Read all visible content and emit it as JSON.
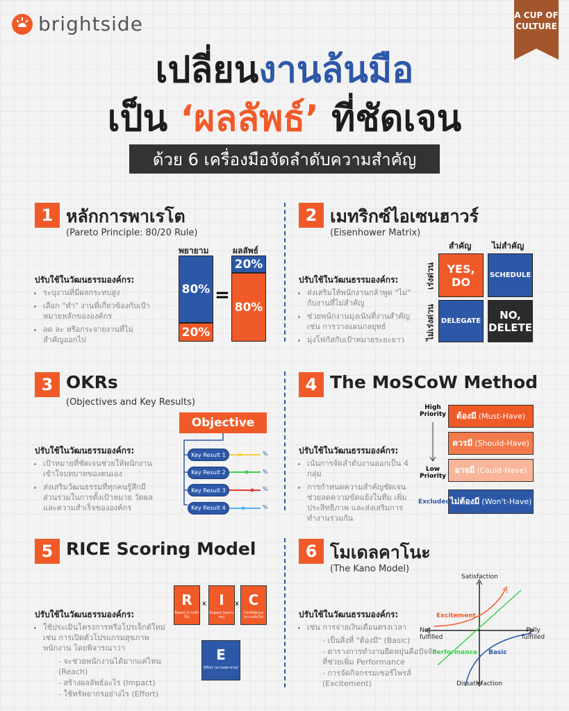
{
  "header": {
    "brand": "brightside",
    "badge": [
      "A CUP OF",
      "CULTURE"
    ],
    "title_line1": [
      "เปลี่ยน",
      "งานล้นมือ"
    ],
    "title_line2": [
      "เป็น",
      "‘ผลลัพธ์’",
      "ที่ชัดเจน"
    ],
    "subtitle": "ด้วย 6 เครื่องมือจัดลำดับความสำคัญ"
  },
  "apply_label": "ปรับใช้ในวัฒนธรรมองค์กร:",
  "sections": [
    {
      "number": "1",
      "title": "หลักการพาเรโต",
      "subtitle": "(Pareto Principle: 80/20 Rule)",
      "bullets": [
        "ระบุงานที่มีผลกระทบสูง",
        "เลือก \"ทำ\" งานที่เกี่ยวข้องกับเป้าหมายหลักขององค์กร",
        "ลด ละ หรือกระจายงานที่ไม่สำคัญออกไป"
      ]
    },
    {
      "number": "2",
      "title": "เมทริกซ์ไอเซนฮาวร์",
      "subtitle": "(Eisenhower Matrix)",
      "bullets": [
        "ส่งเสริมให้พนักงานกล้าพูด \"ไม่\" กับงานที่ไม่สำคัญ",
        "ช่วยพนักงานมุ่งเน้นที่งานสำคัญ เช่น การวางแผนกลยุทธ์",
        "มุ่งโฟกัสกับเป้าหมายระยะยาว"
      ]
    },
    {
      "number": "3",
      "title": "OKRs",
      "subtitle": "(Objectives and Key Results)",
      "bullets": [
        "เป้าหมายที่ชัดเจนช่วยให้พนักงานเข้าใจบทบาทของตนเอง",
        "ส่งเสริมวัฒนธรรมที่ทุกคนรู้สึกมีส่วนร่วมในการตั้งเป้าหมาย วัดผล และความสำเร็จขององค์กร"
      ]
    },
    {
      "number": "4",
      "title": "The MoSCoW Method",
      "bullets": [
        "เน้นการจัดลำดับงานออกเป็น 4 กลุ่ม",
        "การกำหนดความสำคัญชัดเจนช่วยลดความขัดแย้งในทีม เพิ่มประสิทธิภาพ และส่งเสริมการทำงานร่วมกัน"
      ]
    },
    {
      "number": "5",
      "title": "RICE Scoring Model",
      "bullets": [
        "ใช้ประเมินโครงการหรือโปรเจ็กต์ใหม่ เช่น การเปิดตัวโปรแกรมสุขภาพพนักงาน โดยพิจารณาว่า"
      ],
      "sub_bullets": [
        "จะช่วยพนักงานได้มากแค่ไหน (Reach)",
        "สร้างผลลัพธ์อะไร (Impact)",
        "ใช้ทรัพยากรอย่างไร (Effort)"
      ]
    },
    {
      "number": "6",
      "title": "โมเดลคาโนะ",
      "subtitle": "(The Kano Model)",
      "bullets": [
        "เช่น การจ่ายเงินเดือนตรงเวลา"
      ],
      "sub_bullets": [
        "เป็นสิ่งที่ \"ต้องมี\" (Basic)",
        "ตารางการทำงานยืดหยุ่นคือปัจจัยที่ช่วยเพิ่ม Performance",
        "การจัดกิจกรรมเซอร์ไพรส์ (Excitement)"
      ]
    }
  ],
  "pareto": {
    "effort_label": "พยายาม",
    "result_label": "ผลลัพธ์",
    "effort": [
      "80%",
      "20%"
    ],
    "equals": "=",
    "result": [
      "20%",
      "80%"
    ]
  },
  "eisenhower": {
    "cols": [
      "สำคัญ",
      "ไม่สำคัญ"
    ],
    "rows": [
      "เร่งด่วน",
      "ไม่เร่งด่วน"
    ],
    "cells": [
      "YES, DO",
      "SCHEDULE",
      "DELEGATE",
      "NO, DELETE"
    ]
  },
  "okr": {
    "objective": "Objective",
    "key_results": [
      "Key Result 1",
      "Key Result 2",
      "Key Result 3",
      "Key Result 4"
    ],
    "percent": "%"
  },
  "moscow": {
    "high": "High Priority",
    "low": "Low Priority",
    "excluded": "Excluded",
    "rows": [
      {
        "th": "ต้องมี",
        "en": "(Must-Have)"
      },
      {
        "th": "ควรมี",
        "en": "(Should-Have)"
      },
      {
        "th": "อาจมี",
        "en": "(Could-Have)"
      },
      {
        "th": "ไม่ต้องมี",
        "en": "(Won't-Have)"
      }
    ]
  },
  "rice": {
    "times": "x",
    "factors": [
      {
        "letter": "R",
        "label": "Reach (การเข้าถึง)"
      },
      {
        "letter": "I",
        "label": "Impact (ผลกระทบ)"
      },
      {
        "letter": "C",
        "label": "Confidence (ความมั่นใจ)"
      },
      {
        "letter": "E",
        "label": "Effort (ความพยายาม)"
      }
    ]
  },
  "kano": {
    "satisfaction": "Satisfaction",
    "dissatisfaction": "Dissatisfaction",
    "not_fulfilled": "Not fulfilled",
    "fully_fulfilled": "Fully fulfilled",
    "excitement": "Excitement",
    "performance": "Performance",
    "basic": "Basic"
  }
}
